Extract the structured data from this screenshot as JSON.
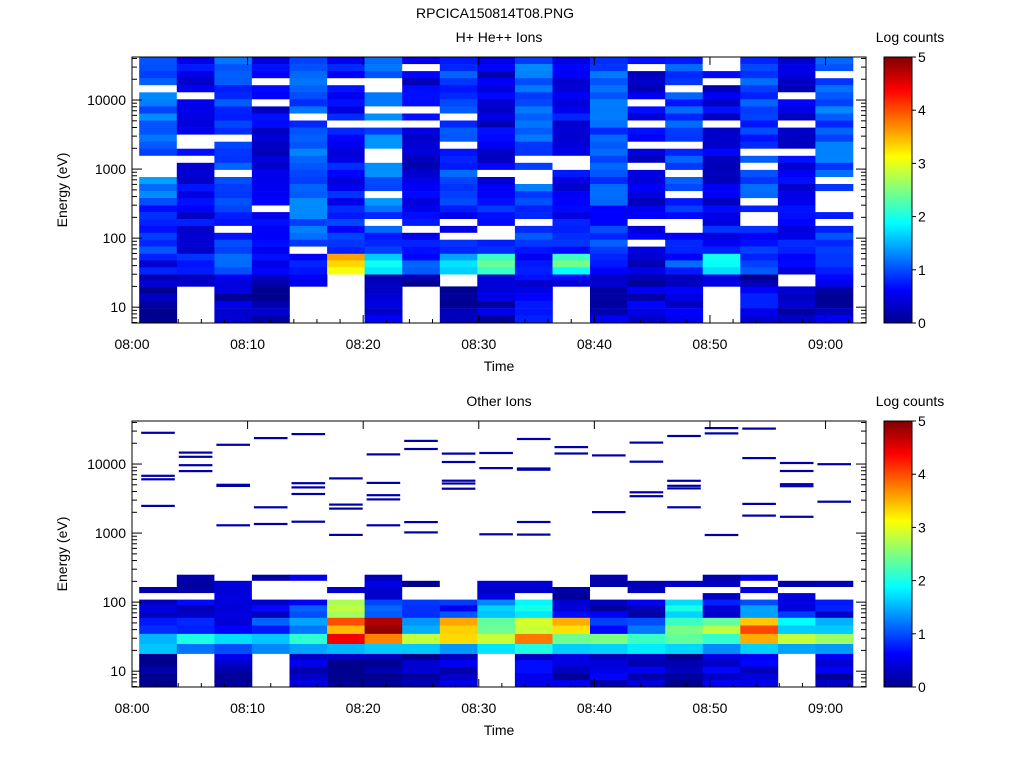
{
  "page_title": "RPCICA150814T08.PNG",
  "chart_data": [
    {
      "type": "heatmap",
      "title": "H+ He++ Ions",
      "xlabel": "Time",
      "ylabel": "Energy (eV)",
      "colorbar_label": "Log counts",
      "colorbar_range": [
        0,
        5
      ],
      "colorbar_ticks": [
        "0",
        "1",
        "2",
        "3",
        "4",
        "5"
      ],
      "x_range_minutes_after_08_00": [
        0,
        63.5
      ],
      "x_ticks": [
        "08:00",
        "08:10",
        "08:20",
        "08:30",
        "08:40",
        "08:50",
        "09:00"
      ],
      "y_scale": "log",
      "y_range": [
        5.9,
        42000
      ],
      "y_ticks": [
        "10",
        "100",
        "1000",
        "10000"
      ],
      "time_bins": [
        "08:02:15",
        "08:05:30",
        "08:08:45",
        "08:12:00",
        "08:15:15",
        "08:18:30",
        "08:21:45",
        "08:25:00",
        "08:28:15",
        "08:31:30",
        "08:34:45",
        "08:38:00",
        "08:41:15",
        "08:44:30",
        "08:47:45",
        "08:51:00",
        "08:54:15",
        "08:57:30",
        "09:00:45"
      ],
      "energy_bands_eV": [
        {
          "range": [
            6,
            20
          ],
          "log_counts": [
            0.1,
            null,
            0.3,
            0.1,
            null,
            null,
            0.5,
            null,
            0.1,
            0.3,
            0.5,
            null,
            0.3,
            0.4,
            0.4,
            null,
            0.6,
            0.1,
            0.3
          ]
        },
        {
          "range": [
            20,
            30
          ],
          "log_counts": [
            0.3,
            0.2,
            0.5,
            0.3,
            0.5,
            null,
            0.3,
            0.2,
            null,
            0.4,
            0.6,
            0.5,
            0.3,
            0.2,
            0.5,
            0.2,
            0.3,
            null,
            0.4
          ]
        },
        {
          "range": [
            30,
            60
          ],
          "log_counts": [
            0.6,
            0.8,
            0.9,
            0.5,
            0.6,
            3.3,
            1.7,
            0.9,
            1.5,
            2.2,
            0.8,
            2.3,
            0.7,
            0.5,
            0.9,
            2.0,
            1.0,
            0.6,
            0.9
          ]
        },
        {
          "range": [
            60,
            300
          ],
          "log_counts": [
            0.9,
            0.6,
            0.8,
            0.7,
            1.1,
            0.8,
            1.0,
            0.6,
            0.7,
            0.8,
            0.9,
            0.7,
            0.9,
            0.6,
            0.8,
            0.7,
            0.9,
            0.7,
            1.0
          ]
        },
        {
          "range": [
            300,
            42000
          ],
          "log_counts": [
            1.2,
            0.6,
            1.0,
            0.5,
            1.1,
            0.7,
            1.2,
            0.5,
            1.0,
            0.5,
            1.1,
            0.6,
            1.1,
            0.5,
            1.0,
            0.5,
            1.0,
            0.5,
            1.1
          ]
        }
      ]
    },
    {
      "type": "heatmap",
      "title": "Other Ions",
      "xlabel": "Time",
      "ylabel": "Energy (eV)",
      "colorbar_label": "Log counts",
      "colorbar_range": [
        0,
        5
      ],
      "colorbar_ticks": [
        "0",
        "1",
        "2",
        "3",
        "4",
        "5"
      ],
      "x_range_minutes_after_08_00": [
        0,
        63.5
      ],
      "x_ticks": [
        "08:00",
        "08:10",
        "08:20",
        "08:30",
        "08:40",
        "08:50",
        "09:00"
      ],
      "y_scale": "log",
      "y_range": [
        5.9,
        42000
      ],
      "y_ticks": [
        "10",
        "100",
        "1000",
        "10000"
      ],
      "time_bins": [
        "08:02:15",
        "08:05:30",
        "08:08:45",
        "08:12:00",
        "08:15:15",
        "08:18:30",
        "08:21:45",
        "08:25:00",
        "08:28:15",
        "08:31:30",
        "08:34:45",
        "08:38:00",
        "08:41:15",
        "08:44:30",
        "08:47:45",
        "08:51:00",
        "08:54:15",
        "08:57:30",
        "09:00:45"
      ],
      "energy_bands_eV": [
        {
          "range": [
            6,
            18
          ],
          "log_counts": [
            0.1,
            null,
            0.3,
            null,
            0.4,
            0.2,
            0.1,
            0.1,
            0.4,
            null,
            0.5,
            0.3,
            0.4,
            0.4,
            0.2,
            0.5,
            0.5,
            null,
            0.3
          ]
        },
        {
          "range": [
            18,
            25
          ],
          "log_counts": [
            1.3,
            1.0,
            1.2,
            1.3,
            1.6,
            1.6,
            1.7,
            1.5,
            1.6,
            1.7,
            1.8,
            1.8,
            1.9,
            1.5,
            1.4,
            1.3,
            1.5,
            1.5,
            1.6
          ]
        },
        {
          "range": [
            25,
            35
          ],
          "log_counts": [
            1.8,
            2.0,
            1.6,
            1.8,
            2.0,
            4.3,
            4.0,
            2.4,
            3.3,
            3.0,
            3.4,
            2.7,
            2.8,
            2.0,
            2.7,
            2.5,
            3.5,
            2.6,
            2.8
          ]
        },
        {
          "range": [
            35,
            60
          ],
          "log_counts": [
            0.7,
            0.8,
            0.6,
            0.9,
            1.5,
            3.8,
            4.5,
            1.6,
            3.4,
            2.6,
            3.1,
            3.3,
            0.8,
            1.2,
            2.4,
            2.7,
            3.8,
            1.8,
            1.6
          ]
        },
        {
          "range": [
            60,
            110
          ],
          "log_counts": [
            0.5,
            0.4,
            0.6,
            0.5,
            0.8,
            2.4,
            1.2,
            0.7,
            0.8,
            1.4,
            1.9,
            0.4,
            0.3,
            0.4,
            1.8,
            0.6,
            1.2,
            0.7,
            0.6
          ]
        },
        {
          "range": [
            110,
            250
          ],
          "log_counts": [
            0.4,
            0.3,
            0.5,
            0.4,
            0.6,
            0.4,
            0.5,
            0.3,
            0.5,
            0.6,
            0.6,
            0.3,
            0.4,
            0.4,
            0.6,
            0.4,
            0.5,
            0.4,
            0.5
          ]
        }
      ]
    }
  ]
}
